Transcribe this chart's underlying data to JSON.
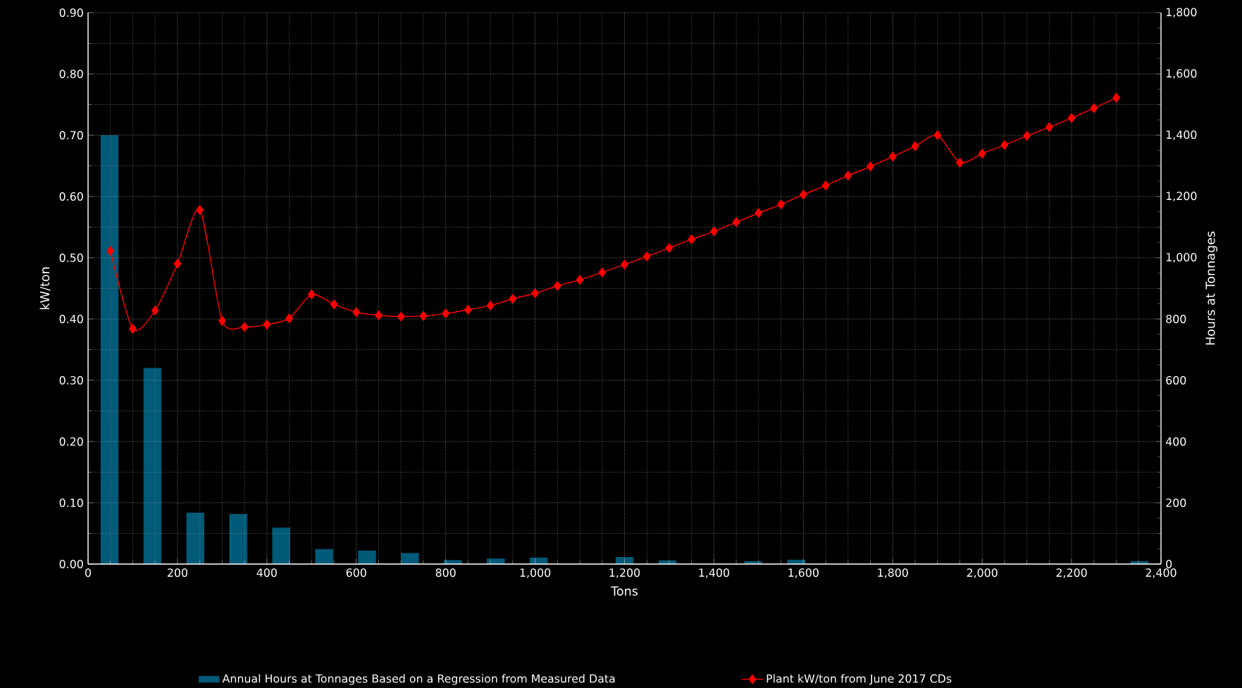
{
  "chart_data": {
    "type": "bar",
    "xlabel": "Tons",
    "ylabel": "kW/ton",
    "y2label": "Hours at Tonnages",
    "xlim": [
      0,
      2400
    ],
    "xticks": [
      0,
      200,
      400,
      600,
      800,
      {
        "value": 1000,
        "label": "1,000"
      },
      {
        "value": 1200,
        "label": "1,200"
      },
      {
        "value": 1400,
        "label": "1,400"
      },
      {
        "value": 1600,
        "label": "1,600"
      },
      {
        "value": 1800,
        "label": "1,800"
      },
      {
        "value": 2000,
        "label": "2,000"
      },
      {
        "value": 2200,
        "label": "2,200"
      },
      {
        "value": 2400,
        "label": "2,400"
      }
    ],
    "ylim": [
      0,
      0.9
    ],
    "yticks": [
      {
        "value": 0,
        "label": "0.00"
      },
      {
        "value": 0.1,
        "label": "0.10"
      },
      {
        "value": 0.2,
        "label": "0.20"
      },
      {
        "value": 0.3,
        "label": "0.30"
      },
      {
        "value": 0.4,
        "label": "0.40"
      },
      {
        "value": 0.5,
        "label": "0.50"
      },
      {
        "value": 0.6,
        "label": "0.60"
      },
      {
        "value": 0.7,
        "label": "0.70"
      },
      {
        "value": 0.8,
        "label": "0.80"
      },
      {
        "value": 0.9,
        "label": "0.90"
      }
    ],
    "y2lim": [
      0,
      1800
    ],
    "y2ticks": [
      0,
      200,
      400,
      600,
      800,
      {
        "value": 1000,
        "label": "1,000"
      },
      {
        "value": 1200,
        "label": "1,200"
      },
      {
        "value": 1400,
        "label": "1,400"
      },
      {
        "value": 1600,
        "label": "1,600"
      },
      {
        "value": 1800,
        "label": "1,800"
      }
    ],
    "grid": true,
    "legend": "bottom",
    "series": [
      {
        "name": "Annual Hours at Tonnages Based on a Regression from Measured Data",
        "axis": "y2",
        "color": "#005a78",
        "x": [
          48,
          144,
          240,
          336,
          432,
          528,
          624,
          720,
          816,
          912,
          1008,
          1104,
          1200,
          1296,
          1392,
          1488,
          1584,
          1680,
          1776,
          1872,
          1968,
          2064,
          2160,
          2256,
          2352
        ],
        "values": [
          1400,
          640,
          168,
          163,
          119,
          49,
          44,
          36,
          13,
          18,
          21,
          0,
          23,
          12,
          0,
          9,
          14,
          0,
          null,
          0,
          null,
          0,
          0,
          0,
          9
        ]
      },
      {
        "name": "Plant kW/ton from June 2017 CDs",
        "type": "line",
        "color": "#ff0000",
        "marker": "diamond",
        "x": [
          50,
          100,
          150,
          200,
          250,
          300,
          350,
          400,
          450,
          500,
          550,
          600,
          650,
          700,
          750,
          800,
          850,
          900,
          950,
          1000,
          1050,
          1100,
          1150,
          1200,
          1250,
          1300,
          1350,
          1400,
          1450,
          1500,
          1550,
          1600,
          1650,
          1700,
          1750,
          1800,
          1850,
          1900,
          1950,
          2000,
          2050,
          2100,
          2150,
          2200,
          2250,
          2300
        ],
        "values": [
          0.511,
          0.384,
          0.414,
          0.49,
          0.578,
          0.397,
          0.387,
          0.391,
          0.401,
          0.44,
          0.424,
          0.411,
          0.406,
          0.404,
          0.405,
          0.409,
          0.415,
          0.422,
          0.433,
          0.442,
          0.454,
          0.464,
          0.476,
          0.489,
          0.502,
          0.516,
          0.53,
          0.543,
          0.558,
          0.573,
          0.587,
          0.603,
          0.618,
          0.634,
          0.649,
          0.665,
          0.682,
          0.7,
          0.655,
          0.67,
          0.684,
          0.699,
          0.713,
          0.728,
          0.744,
          0.761
        ]
      }
    ]
  }
}
